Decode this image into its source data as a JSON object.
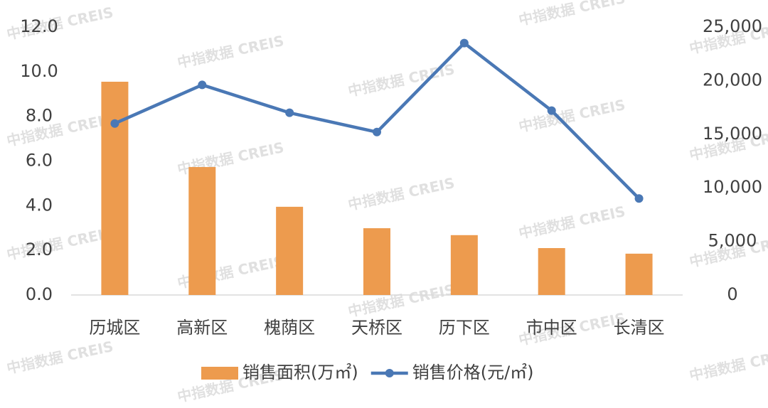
{
  "chart_data": {
    "type": "bar_line",
    "categories": [
      "历城区",
      "高新区",
      "槐荫区",
      "天桥区",
      "历下区",
      "市中区",
      "长清区"
    ],
    "series": [
      {
        "name": "销售面积(万㎡)",
        "color": "#ed9b4e",
        "type": "bar",
        "values": [
          9.55,
          5.73,
          3.95,
          2.99,
          2.68,
          2.1,
          1.85
        ]
      },
      {
        "name": "销售价格(元/㎡)",
        "color": "#4a78b5",
        "type": "line",
        "axis": "y2",
        "values": [
          16000,
          19600,
          17000,
          15200,
          23500,
          17200,
          9000
        ]
      }
    ],
    "ylim": [
      0,
      12
    ],
    "yticks": [
      {
        "value": 0,
        "label": "0.0"
      },
      {
        "value": 2,
        "label": "2.0"
      },
      {
        "value": 4,
        "label": "4.0"
      },
      {
        "value": 6,
        "label": "6.0"
      },
      {
        "value": 8,
        "label": "8.0"
      },
      {
        "value": 10,
        "label": "10.0"
      },
      {
        "value": 12,
        "label": "12.0"
      }
    ],
    "y2lim": [
      0,
      25000
    ],
    "y2ticks": [
      0,
      {
        "value": 5000,
        "label": "5,000"
      },
      {
        "value": 10000,
        "label": "10,000"
      },
      {
        "value": 15000,
        "label": "15,000"
      },
      {
        "value": 20000,
        "label": "20,000"
      },
      {
        "value": 25000,
        "label": "25,000"
      }
    ],
    "grid": false,
    "legend": "bottom",
    "watermark": "中指数据 CREIS"
  }
}
